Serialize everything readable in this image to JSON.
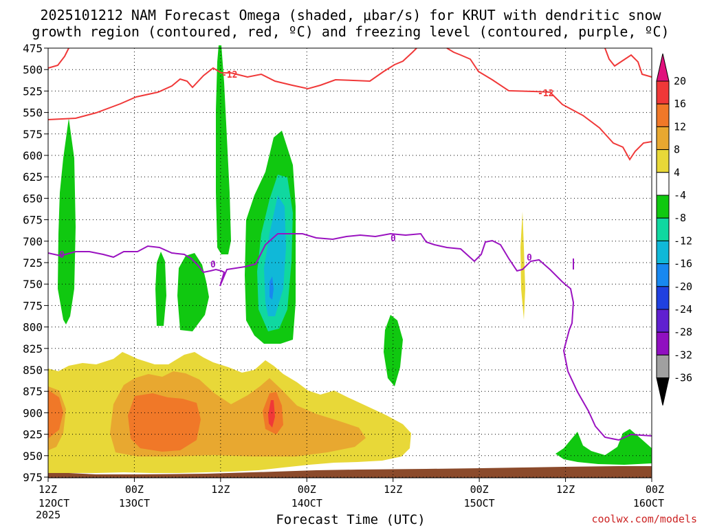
{
  "chart_data": {
    "type": "time-height cross section",
    "title_line1": "2025101212 NAM Forecast Omega (shaded, μbar/s) for KRUT with dendritic snow",
    "title_line2": "growth region (contoured, red, ºC) and freezing level (contoured, purple, ºC)",
    "xlabel": "Forecast Time (UTC)",
    "credit": "coolwx.com/models",
    "year_label": "2025",
    "y_ticks": [
      "475",
      "500",
      "525",
      "550",
      "575",
      "600",
      "625",
      "650",
      "675",
      "700",
      "725",
      "750",
      "775",
      "800",
      "825",
      "850",
      "875",
      "900",
      "925",
      "950",
      "975"
    ],
    "x_ticks": [
      {
        "top": "12Z",
        "bottom": "12OCT"
      },
      {
        "top": "00Z",
        "bottom": "13OCT"
      },
      {
        "top": "12Z",
        "bottom": ""
      },
      {
        "top": "00Z",
        "bottom": "14OCT"
      },
      {
        "top": "12Z",
        "bottom": ""
      },
      {
        "top": "00Z",
        "bottom": "15OCT"
      },
      {
        "top": "12Z",
        "bottom": ""
      },
      {
        "top": "00Z",
        "bottom": "16OCT"
      }
    ],
    "forecast_hours": [
      0,
      12,
      24,
      36,
      48,
      60,
      72,
      84
    ],
    "y_range_hPa": [
      475,
      975
    ],
    "colorbar": {
      "labels": [
        "20",
        "16",
        "12",
        "8",
        "4",
        "-4",
        "-8",
        "-12",
        "-16",
        "-20",
        "-24",
        "-28",
        "-32",
        "-36"
      ],
      "colors": [
        "#e0107c",
        "#f03838",
        "#f07828",
        "#e8a830",
        "#e8d838",
        "#ffffff",
        "#10c810",
        "#10d8a0",
        "#10b8d8",
        "#1888f0",
        "#2040e0",
        "#6020d0",
        "#9010c0",
        "#a0a0a0",
        "#000000"
      ]
    },
    "contour_labels": {
      "dgz_upper": "-12",
      "dgz_right": "-12",
      "freezing": "0"
    }
  }
}
